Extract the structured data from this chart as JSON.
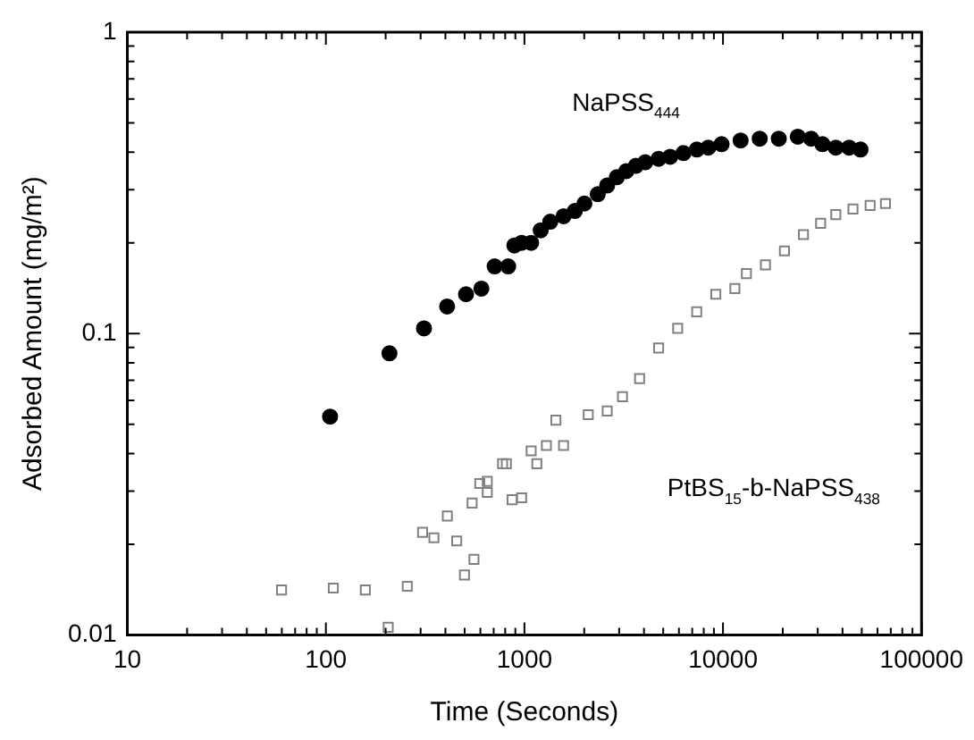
{
  "chart_data": {
    "type": "scatter",
    "xlabel": "Time (Seconds)",
    "ylabel": "Adsorbed Amount (mg/m²)",
    "log": "xy",
    "xlim": [
      10,
      100000
    ],
    "ylim": [
      0.01,
      1
    ],
    "xticks": [
      10,
      {
        "value": 20,
        "label": null
      },
      {
        "value": 30,
        "label": null
      },
      {
        "value": 40,
        "label": null
      },
      {
        "value": 50,
        "label": null
      },
      {
        "value": 60,
        "label": null
      },
      {
        "value": 70,
        "label": null
      },
      {
        "value": 80,
        "label": null
      },
      {
        "value": 90,
        "label": null
      },
      100,
      {
        "value": 200,
        "label": null
      },
      {
        "value": 300,
        "label": null
      },
      {
        "value": 400,
        "label": null
      },
      {
        "value": 500,
        "label": null
      },
      {
        "value": 600,
        "label": null
      },
      {
        "value": 700,
        "label": null
      },
      {
        "value": 800,
        "label": null
      },
      {
        "value": 900,
        "label": null
      },
      1000,
      {
        "value": 2000,
        "label": null
      },
      {
        "value": 3000,
        "label": null
      },
      {
        "value": 4000,
        "label": null
      },
      {
        "value": 5000,
        "label": null
      },
      {
        "value": 6000,
        "label": null
      },
      {
        "value": 7000,
        "label": null
      },
      {
        "value": 8000,
        "label": null
      },
      {
        "value": 9000,
        "label": null
      },
      10000,
      {
        "value": 20000,
        "label": null
      },
      {
        "value": 30000,
        "label": null
      },
      {
        "value": 40000,
        "label": null
      },
      {
        "value": 50000,
        "label": null
      },
      {
        "value": 60000,
        "label": null
      },
      {
        "value": 70000,
        "label": null
      },
      {
        "value": 80000,
        "label": null
      },
      {
        "value": 90000,
        "label": null
      },
      100000
    ],
    "yticks": [
      0.01,
      {
        "value": 0.02,
        "label": null
      },
      {
        "value": 0.03,
        "label": null
      },
      {
        "value": 0.04,
        "label": null
      },
      {
        "value": 0.05,
        "label": null
      },
      {
        "value": 0.06,
        "label": null
      },
      {
        "value": 0.07,
        "label": null
      },
      {
        "value": 0.08,
        "label": null
      },
      {
        "value": 0.09,
        "label": null
      },
      0.1,
      {
        "value": 0.2,
        "label": null
      },
      {
        "value": 0.3,
        "label": null
      },
      {
        "value": 0.4,
        "label": null
      },
      {
        "value": 0.5,
        "label": null
      },
      {
        "value": 0.6,
        "label": null
      },
      {
        "value": 0.7,
        "label": null
      },
      {
        "value": 0.8,
        "label": null
      },
      {
        "value": 0.9,
        "label": null
      },
      1
    ],
    "grid": false,
    "legend": false,
    "annotations": [
      "NaPSS$_{444}$",
      "PtBS$_{15}$-b-NaPSS$_{438}$"
    ],
    "series": [
      {
        "color": "#000000",
        "marker": "circle",
        "x": [
          105,
          209,
          312,
          408,
          508,
          607,
          708,
          828,
          890,
          968,
          1081,
          1208,
          1350,
          1575,
          1795,
          2005,
          2340,
          2610,
          2920,
          3260,
          3640,
          4060,
          4740,
          5420,
          6320,
          7380,
          8430,
          9840,
          12270,
          15310,
          19100,
          23800,
          27800,
          31700,
          37000,
          43200,
          49300
        ],
        "values": [
          0.053,
          0.086,
          0.104,
          0.123,
          0.135,
          0.141,
          0.167,
          0.167,
          0.196,
          0.2,
          0.2,
          0.22,
          0.235,
          0.245,
          0.255,
          0.27,
          0.29,
          0.31,
          0.33,
          0.346,
          0.36,
          0.37,
          0.38,
          0.386,
          0.397,
          0.408,
          0.414,
          0.425,
          0.437,
          0.443,
          0.443,
          0.45,
          0.443,
          0.425,
          0.414,
          0.414,
          0.408
        ]
      },
      {
        "color": "#808080",
        "marker": "square",
        "x": [
          59.8,
          109,
          158,
          206,
          257,
          307,
          350,
          409,
          456,
          499,
          545,
          557,
          596,
          650,
          650,
          776,
          811,
          867,
          968,
          1081,
          1155,
          1290,
          1440,
          1574,
          2096,
          2612,
          3118,
          3803,
          4742,
          5913,
          7374,
          9200,
          11480,
          13120,
          16360,
          20400,
          25430,
          31030,
          37000,
          45150,
          55100,
          65800
        ],
        "values": [
          0.0141,
          0.0143,
          0.0141,
          0.0106,
          0.0145,
          0.0219,
          0.021,
          0.0248,
          0.0205,
          0.0158,
          0.0274,
          0.0178,
          0.0318,
          0.0297,
          0.0323,
          0.037,
          0.037,
          0.0281,
          0.0285,
          0.0408,
          0.037,
          0.0425,
          0.0516,
          0.0425,
          0.0538,
          0.0553,
          0.0617,
          0.0709,
          0.0895,
          0.104,
          0.118,
          0.135,
          0.141,
          0.158,
          0.169,
          0.188,
          0.213,
          0.232,
          0.248,
          0.259,
          0.266,
          0.27
        ]
      }
    ]
  }
}
